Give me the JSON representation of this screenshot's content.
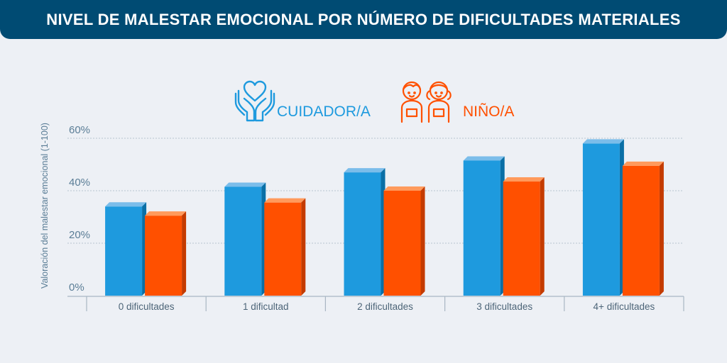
{
  "header": {
    "title": "NIVEL DE MALESTAR EMOCIONAL POR NÚMERO DE DIFICULTADES MATERIALES"
  },
  "legend": [
    {
      "label": "CUIDADOR/A",
      "icon": "hands-heart-icon",
      "color": "#1e9ade"
    },
    {
      "label": "NIÑO/A",
      "icon": "children-icon",
      "color": "#ff5000"
    }
  ],
  "colors": {
    "banner": "#004b73",
    "background": "#edf0f5",
    "caregiver": "#1e9ade",
    "child": "#ff5000",
    "axis_text": "#5a7d96"
  },
  "chart_data": {
    "type": "bar",
    "title": "NIVEL DE MALESTAR EMOCIONAL POR NÚMERO DE DIFICULTADES MATERIALES",
    "xlabel": "",
    "ylabel": "Valoración del malestar emocional (1-100)",
    "categories": [
      "0 dificultades",
      "1 dificultad",
      "2 dificultades",
      "3 dificultades",
      "4+ dificultades"
    ],
    "series": [
      {
        "name": "CUIDADOR/A",
        "values": [
          34,
          41.5,
          47,
          51.5,
          58
        ]
      },
      {
        "name": "NIÑO/A",
        "values": [
          30.5,
          35.5,
          40,
          43.5,
          49.5
        ]
      }
    ],
    "ylim": [
      0,
      60
    ],
    "yticks": [
      0,
      20,
      40,
      60
    ],
    "ytick_labels": [
      "0%",
      "20%",
      "40%",
      "60%"
    ],
    "grid": true,
    "legend_position": "top-center"
  }
}
